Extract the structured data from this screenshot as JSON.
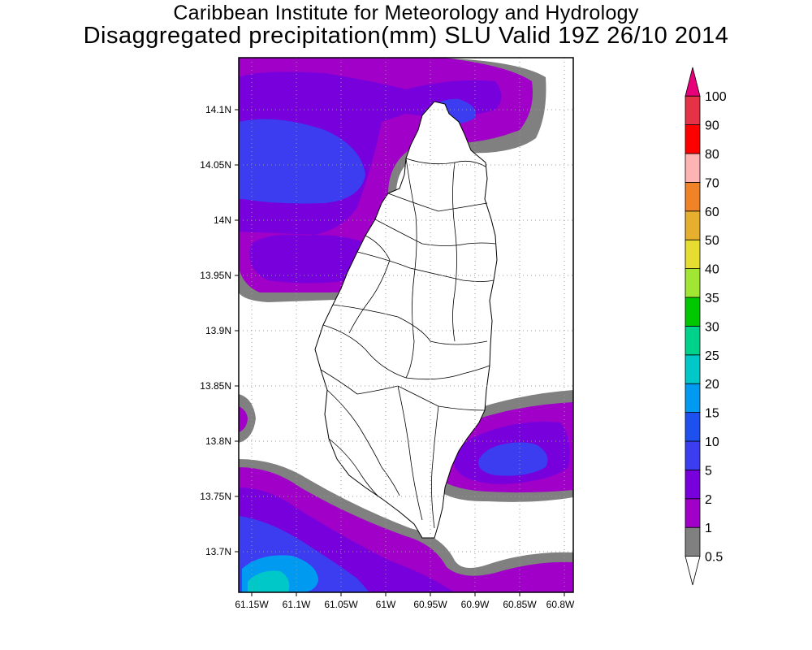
{
  "title": {
    "line1": "Caribbean Institute for Meteorology and Hydrology",
    "line2": "Disaggregated precipitation(mm) SLU Valid 19Z 26/10 2014"
  },
  "axes": {
    "lat_ticks": [
      "14.1N",
      "14.05N",
      "14N",
      "13.95N",
      "13.9N",
      "13.85N",
      "13.8N",
      "13.75N",
      "13.7N"
    ],
    "lon_ticks": [
      "61.15W",
      "61.1W",
      "61.05W",
      "61W",
      "60.95W",
      "60.9W",
      "60.85W",
      "60.8W"
    ]
  },
  "legend": {
    "levels": [
      {
        "label": "0.5",
        "color": "#ffffff"
      },
      {
        "label": "1",
        "color": "#808080"
      },
      {
        "label": "2",
        "color": "#a000c8"
      },
      {
        "label": "5",
        "color": "#7800dc"
      },
      {
        "label": "10",
        "color": "#3c3cf0"
      },
      {
        "label": "15",
        "color": "#1e50f0"
      },
      {
        "label": "20",
        "color": "#009bf0"
      },
      {
        "label": "25",
        "color": "#00c8c8"
      },
      {
        "label": "30",
        "color": "#00d28c"
      },
      {
        "label": "35",
        "color": "#00c800"
      },
      {
        "label": "40",
        "color": "#a0e632"
      },
      {
        "label": "50",
        "color": "#e6dc32"
      },
      {
        "label": "60",
        "color": "#e6af2d"
      },
      {
        "label": "70",
        "color": "#f08228"
      },
      {
        "label": "80",
        "color": "#ffb4b4"
      },
      {
        "label": "90",
        "color": "#ff0000"
      },
      {
        "label": "100",
        "color": "#e63246"
      },
      {
        "label": "",
        "color": "#e6007a"
      }
    ]
  },
  "colors": {
    "gray": "#808080",
    "purple": "#a000c8",
    "violet": "#7800dc",
    "blue": "#3c3cf0",
    "lightblue": "#009bf0",
    "cyan": "#00c8c8",
    "coast": "#000000"
  }
}
